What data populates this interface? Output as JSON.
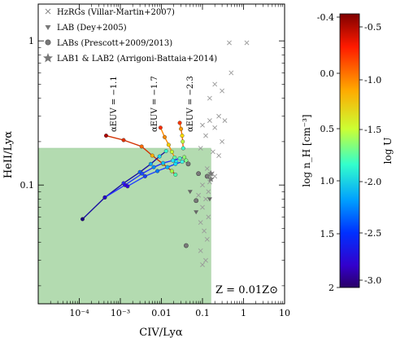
{
  "chart_data": {
    "type": "scatter",
    "title": "",
    "xlabel": "CIV/Lyα",
    "ylabel": "HeII/Lyα",
    "xscale": "log",
    "yscale": "log",
    "xlim": [
      1e-05,
      10
    ],
    "ylim": [
      0.015,
      1.8
    ],
    "x_ticks": [
      0.0001,
      0.001,
      0.01,
      0.1,
      1,
      10
    ],
    "x_tick_labels": [
      "10⁻⁴",
      "10⁻³",
      "0.01",
      "0.1",
      "1",
      "10"
    ],
    "y_ticks": [
      0.1,
      1
    ],
    "y_tick_labels": [
      "0.1",
      "1"
    ],
    "shaded_region": {
      "x_max": 0.16,
      "y_max": 0.18,
      "color": "#b3dbb0"
    },
    "annotation": "Z = 0.01Z⊙",
    "alpha_labels": [
      "αEUV = −1.1",
      "αEUV = −1.7",
      "αEUV = −2.3"
    ],
    "legend": {
      "placement": "top-left",
      "entries": [
        {
          "label": "HzRGs (Villar-Martin+2007)",
          "marker": "x"
        },
        {
          "label": "LAB (Dey+2005)",
          "marker": "triangle"
        },
        {
          "label": "LABs (Prescott+2009/2013)",
          "marker": "circle"
        },
        {
          "label": "LAB1 & LAB2 (Arrigoni-Battaia+2014)",
          "marker": "star"
        }
      ]
    },
    "model_tracks": [
      {
        "alpha": -1.1,
        "points": [
          [
            0.00045,
            0.22
          ],
          [
            0.0012,
            0.205
          ],
          [
            0.0033,
            0.185
          ],
          [
            0.006,
            0.16
          ],
          [
            0.011,
            0.14
          ],
          [
            0.018,
            0.125
          ],
          [
            0.022,
            0.118
          ]
        ]
      },
      {
        "alpha": -1.7,
        "points": [
          [
            0.0095,
            0.25
          ],
          [
            0.012,
            0.215
          ],
          [
            0.015,
            0.19
          ],
          [
            0.018,
            0.17
          ],
          [
            0.021,
            0.155
          ],
          [
            0.023,
            0.145
          ]
        ]
      },
      {
        "alpha": -2.3,
        "points": [
          [
            0.028,
            0.27
          ],
          [
            0.03,
            0.245
          ],
          [
            0.032,
            0.22
          ],
          [
            0.033,
            0.2
          ],
          [
            0.034,
            0.18
          ]
        ]
      },
      {
        "alpha": "low-U",
        "points": [
          [
            0.00012,
            0.058
          ],
          [
            0.00042,
            0.082
          ],
          [
            0.0012,
            0.103
          ],
          [
            0.003,
            0.123
          ],
          [
            0.0055,
            0.14
          ],
          [
            0.009,
            0.158
          ],
          [
            0.013,
            0.172
          ]
        ]
      },
      {
        "alpha": "low-U2",
        "points": [
          [
            0.00042,
            0.082
          ],
          [
            0.0013,
            0.1
          ],
          [
            0.0034,
            0.12
          ],
          [
            0.0065,
            0.133
          ],
          [
            0.011,
            0.142
          ],
          [
            0.019,
            0.148
          ],
          [
            0.028,
            0.153
          ],
          [
            0.036,
            0.156
          ]
        ]
      },
      {
        "alpha": "low-U3",
        "points": [
          [
            0.0015,
            0.098
          ],
          [
            0.004,
            0.115
          ],
          [
            0.008,
            0.125
          ],
          [
            0.014,
            0.133
          ],
          [
            0.022,
            0.14
          ],
          [
            0.032,
            0.145
          ],
          [
            0.04,
            0.148
          ]
        ]
      }
    ],
    "hzrg_points": [
      [
        0.45,
        0.97
      ],
      [
        1.2,
        0.97
      ],
      [
        0.2,
        0.5
      ],
      [
        0.3,
        0.45
      ],
      [
        0.5,
        0.6
      ],
      [
        0.15,
        0.4
      ],
      [
        0.25,
        0.3
      ],
      [
        0.15,
        0.28
      ],
      [
        0.1,
        0.26
      ],
      [
        0.2,
        0.25
      ],
      [
        0.35,
        0.28
      ],
      [
        0.12,
        0.22
      ],
      [
        0.3,
        0.2
      ],
      [
        0.09,
        0.18
      ],
      [
        0.18,
        0.17
      ],
      [
        0.25,
        0.16
      ],
      [
        0.13,
        0.13
      ],
      [
        0.17,
        0.12
      ],
      [
        0.2,
        0.115
      ],
      [
        0.15,
        0.105
      ],
      [
        0.1,
        0.1
      ],
      [
        0.14,
        0.09
      ],
      [
        0.08,
        0.085
      ],
      [
        0.12,
        0.08
      ],
      [
        0.1,
        0.07
      ],
      [
        0.14,
        0.06
      ],
      [
        0.09,
        0.055
      ],
      [
        0.11,
        0.048
      ],
      [
        0.13,
        0.042
      ],
      [
        0.12,
        0.03
      ],
      [
        0.09,
        0.035
      ],
      [
        0.1,
        0.028
      ]
    ],
    "lab_dey_points": [
      [
        0.05,
        0.09
      ],
      [
        0.07,
        0.065
      ],
      [
        0.15,
        0.08
      ]
    ],
    "lab_prescott_points": [
      [
        0.045,
        0.14
      ],
      [
        0.08,
        0.12
      ],
      [
        0.13,
        0.115
      ],
      [
        0.07,
        0.078
      ],
      [
        0.04,
        0.038
      ]
    ],
    "lab_ab_points": [
      [
        0.16,
        0.12
      ],
      [
        0.16,
        0.11
      ]
    ],
    "colorbar": {
      "left_label": "log n_H [cm⁻³]",
      "right_label": "log U",
      "left_ticks": [
        "-0.4",
        "0.0",
        "0.5",
        "1.0",
        "1.5",
        "2"
      ],
      "right_ticks": [
        "-0.5",
        "-1.0",
        "-1.5",
        "-2.0",
        "-2.5",
        "-3.0"
      ],
      "colors": [
        "#7f0000",
        "#ff1a00",
        "#ffaa00",
        "#ccff33",
        "#33ffcc",
        "#00a0ff",
        "#0030ff",
        "#3300cc",
        "#2a0066"
      ]
    }
  }
}
